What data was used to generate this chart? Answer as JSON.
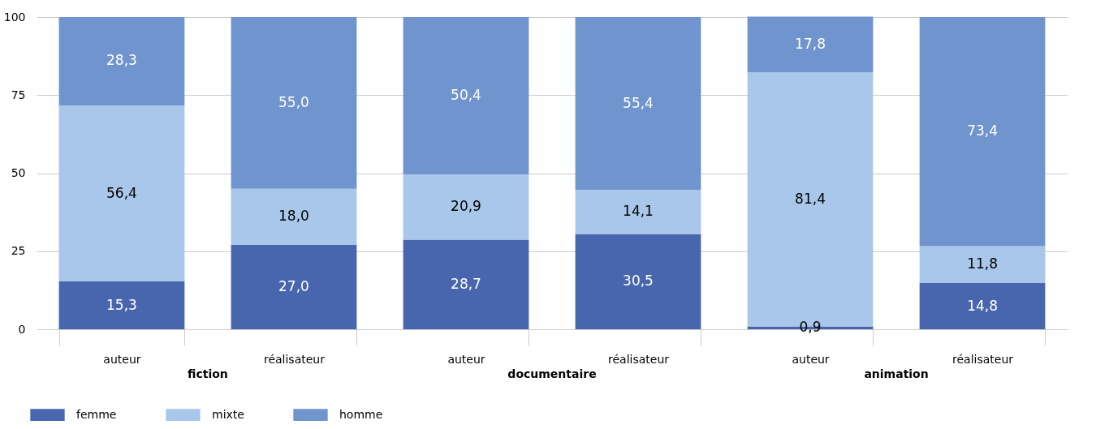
{
  "chart_data": {
    "type": "bar",
    "stacked": true,
    "categories": [
      "auteur",
      "réalisateur",
      "auteur",
      "réalisateur",
      "auteur",
      "réalisateur"
    ],
    "series": [
      {
        "name": "femme",
        "color": "#4866ae",
        "values": [
          15.3,
          27.0,
          28.7,
          30.5,
          0.9,
          14.8
        ],
        "value_labels": [
          "15,3",
          "27,0",
          "28,7",
          "30,5",
          "0,9",
          "14,8"
        ]
      },
      {
        "name": "mixte",
        "color": "#a9c7ea",
        "values": [
          56.4,
          18.0,
          20.9,
          14.1,
          81.4,
          11.8
        ],
        "value_labels": [
          "56,4",
          "18,0",
          "20,9",
          "14,1",
          "81,4",
          "11,8"
        ]
      },
      {
        "name": "homme",
        "color": "#7094cd",
        "values": [
          28.3,
          55.0,
          50.4,
          55.4,
          17.8,
          73.4
        ],
        "value_labels": [
          "28,3",
          "55,0",
          "50,4",
          "55,4",
          "17,8",
          "73,4"
        ]
      }
    ],
    "annotations": [
      "fiction",
      "documentaire",
      "animation"
    ],
    "ylim": [
      0,
      100
    ],
    "yticks": [
      0,
      25,
      50,
      75,
      100
    ],
    "grid": "y",
    "legend": "bottom left"
  }
}
